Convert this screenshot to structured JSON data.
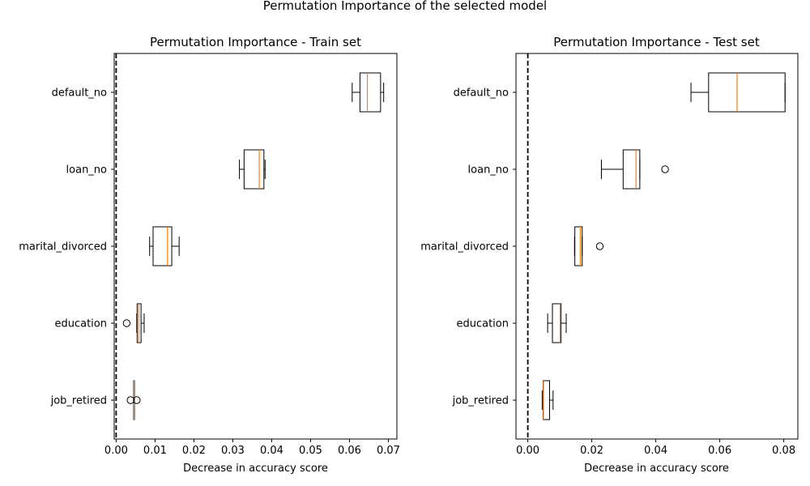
{
  "figure": {
    "suptitle": "Permutation Importance of the selected model"
  },
  "chart_data": [
    {
      "type": "boxplot",
      "orientation": "horizontal",
      "title": "Permutation Importance - Train set",
      "xlabel": "Decrease in accuracy score",
      "ylabel": "",
      "xlim": [
        -0.0005,
        0.0722
      ],
      "xticks": [
        0.0,
        0.01,
        0.02,
        0.03,
        0.04,
        0.05,
        0.06,
        0.07
      ],
      "xtick_labels": [
        "0.00",
        "0.01",
        "0.02",
        "0.03",
        "0.04",
        "0.05",
        "0.06",
        "0.07"
      ],
      "reference_line": {
        "x": 0.0,
        "style": "dashed",
        "color": "#000000"
      },
      "categories": [
        "default_no",
        "loan_no",
        "marital_divorced",
        "education",
        "job_retired"
      ],
      "boxes": [
        {
          "label": "default_no",
          "whislo": 0.0607,
          "q1": 0.0627,
          "med": 0.0646,
          "q3": 0.068,
          "whishi": 0.0688,
          "fliers": []
        },
        {
          "label": "loan_no",
          "whislo": 0.0317,
          "q1": 0.0329,
          "med": 0.0368,
          "q3": 0.038,
          "whishi": 0.0383,
          "fliers": []
        },
        {
          "label": "marital_divorced",
          "whislo": 0.0086,
          "q1": 0.0095,
          "med": 0.0132,
          "q3": 0.0143,
          "whishi": 0.0162,
          "fliers": []
        },
        {
          "label": "education",
          "whislo": 0.0053,
          "q1": 0.0054,
          "med": 0.0058,
          "q3": 0.0064,
          "whishi": 0.0072,
          "fliers": [
            0.0027
          ]
        },
        {
          "label": "job_retired",
          "whislo": 0.0045,
          "q1": 0.0045,
          "med": 0.0046,
          "q3": 0.0046,
          "whishi": 0.0047,
          "fliers": [
            0.0037,
            0.0053
          ]
        }
      ],
      "colors": {
        "box": "#000000",
        "median": "#ff7f0e"
      }
    },
    {
      "type": "boxplot",
      "orientation": "horizontal",
      "title": "Permutation Importance - Test set",
      "xlabel": "Decrease in accuracy score",
      "ylabel": "",
      "xlim": [
        -0.0037,
        0.0844
      ],
      "xticks": [
        0.0,
        0.02,
        0.04,
        0.06,
        0.08
      ],
      "xtick_labels": [
        "0.00",
        "0.02",
        "0.04",
        "0.06",
        "0.08"
      ],
      "reference_line": {
        "x": 0.0,
        "style": "dashed",
        "color": "#000000"
      },
      "categories": [
        "default_no",
        "loan_no",
        "marital_divorced",
        "education",
        "job_retired"
      ],
      "boxes": [
        {
          "label": "default_no",
          "whislo": 0.051,
          "q1": 0.0565,
          "med": 0.0654,
          "q3": 0.0804,
          "whishi": 0.0804,
          "fliers": []
        },
        {
          "label": "loan_no",
          "whislo": 0.023,
          "q1": 0.0298,
          "med": 0.0338,
          "q3": 0.035,
          "whishi": 0.035,
          "fliers": [
            0.0429
          ]
        },
        {
          "label": "marital_divorced",
          "whislo": 0.0146,
          "q1": 0.0147,
          "med": 0.0164,
          "q3": 0.017,
          "whishi": 0.017,
          "fliers": [
            0.0225
          ]
        },
        {
          "label": "education",
          "whislo": 0.0062,
          "q1": 0.0077,
          "med": 0.0101,
          "q3": 0.0104,
          "whishi": 0.012,
          "fliers": []
        },
        {
          "label": "job_retired",
          "whislo": 0.0045,
          "q1": 0.0048,
          "med": 0.0049,
          "q3": 0.0068,
          "whishi": 0.0079,
          "fliers": []
        }
      ],
      "colors": {
        "box": "#000000",
        "median": "#ff7f0e"
      }
    }
  ]
}
